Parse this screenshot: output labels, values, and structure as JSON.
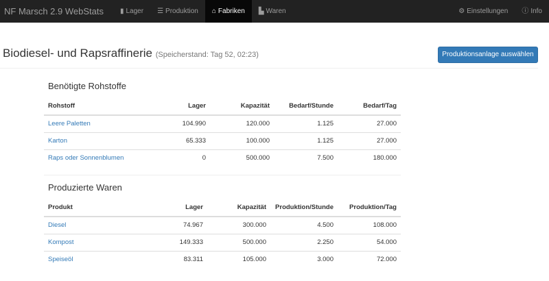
{
  "nav": {
    "brand": "NF Marsch 2.9 WebStats",
    "items": [
      {
        "label": "Lager",
        "icon": "bar-chart-icon"
      },
      {
        "label": "Produktion",
        "icon": "list-icon"
      },
      {
        "label": "Fabriken",
        "icon": "home-icon",
        "active": true
      },
      {
        "label": "Waren",
        "icon": "box-icon"
      }
    ],
    "settings": "Einstellungen",
    "info": "Info"
  },
  "page": {
    "title": "Biodiesel- und Rapsraffinerie",
    "subtitle": "(Speicherstand: Tag 52, 02:23)",
    "button": "Produktionsanlage auswählen"
  },
  "inputs": {
    "title": "Benötigte Rohstoffe",
    "headers": [
      "Rohstoff",
      "Lager",
      "Kapazität",
      "Bedarf/Stunde",
      "Bedarf/Tag"
    ],
    "rows": [
      [
        "Leere Paletten",
        "104.990",
        "120.000",
        "1.125",
        "27.000"
      ],
      [
        "Karton",
        "65.333",
        "100.000",
        "1.125",
        "27.000"
      ],
      [
        "Raps oder Sonnenblumen",
        "0",
        "500.000",
        "7.500",
        "180.000"
      ]
    ]
  },
  "outputs": {
    "title": "Produzierte Waren",
    "headers": [
      "Produkt",
      "Lager",
      "Kapazität",
      "Produktion/Stunde",
      "Produktion/Tag"
    ],
    "rows": [
      [
        "Diesel",
        "74.967",
        "300.000",
        "4.500",
        "108.000"
      ],
      [
        "Kompost",
        "149.333",
        "500.000",
        "2.250",
        "54.000"
      ],
      [
        "Speiseöl",
        "83.311",
        "105.000",
        "3.000",
        "72.000"
      ]
    ]
  }
}
